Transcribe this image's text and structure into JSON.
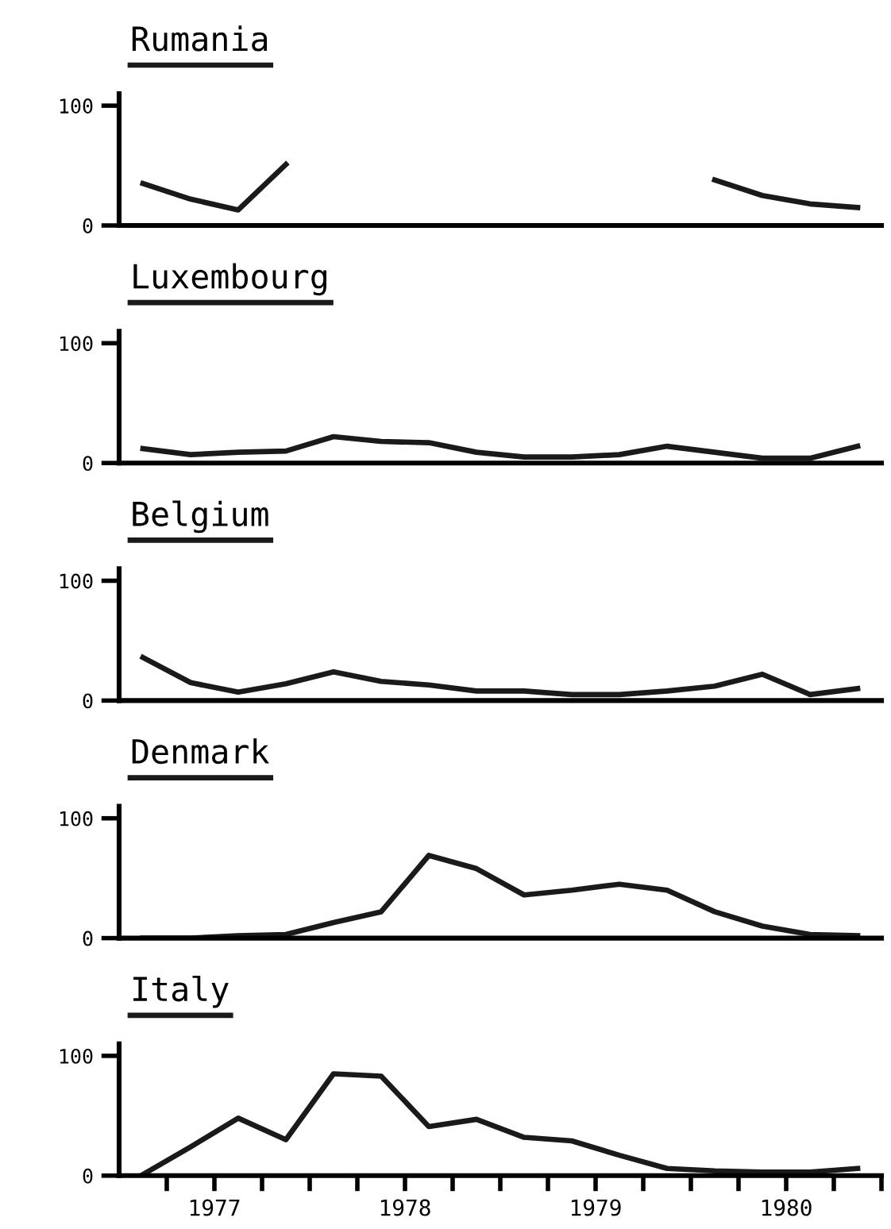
{
  "chart_data": [
    {
      "type": "line",
      "title": "Rumania",
      "x": [
        1977.125,
        1977.375,
        1977.625,
        1977.875,
        1978.125,
        1978.375,
        1978.625,
        1978.875,
        1979.125,
        1979.375,
        1979.625,
        1979.875,
        1980.125,
        1980.375,
        1980.625,
        1980.875
      ],
      "series": [
        {
          "color": "#1a1a1a",
          "values": [
            35,
            22,
            13,
            51,
            null,
            null,
            null,
            null,
            null,
            null,
            null,
            null,
            38,
            25,
            18,
            15
          ]
        }
      ],
      "xlim": [
        1977,
        1981
      ],
      "ylim": [
        0,
        110
      ],
      "yticks": [
        0,
        100
      ],
      "tick_labels": "y",
      "grid": false,
      "legend": false
    },
    {
      "type": "line",
      "title": "Luxembourg",
      "x": [
        1977.125,
        1977.375,
        1977.625,
        1977.875,
        1978.125,
        1978.375,
        1978.625,
        1978.875,
        1979.125,
        1979.375,
        1979.625,
        1979.875,
        1980.125,
        1980.375,
        1980.625,
        1980.875
      ],
      "series": [
        {
          "color": "#1a1a1a",
          "values": [
            12,
            7,
            9,
            10,
            22,
            18,
            17,
            9,
            5,
            5,
            7,
            14,
            9,
            4,
            4,
            14
          ]
        }
      ],
      "xlim": [
        1977,
        1981
      ],
      "ylim": [
        0,
        110
      ],
      "yticks": [
        0,
        100
      ],
      "tick_labels": "y",
      "grid": false,
      "legend": false
    },
    {
      "type": "line",
      "title": "Belgium",
      "x": [
        1977.125,
        1977.375,
        1977.625,
        1977.875,
        1978.125,
        1978.375,
        1978.625,
        1978.875,
        1979.125,
        1979.375,
        1979.625,
        1979.875,
        1980.125,
        1980.375,
        1980.625,
        1980.875
      ],
      "series": [
        {
          "color": "#1a1a1a",
          "values": [
            36,
            15,
            7,
            14,
            24,
            16,
            13,
            8,
            8,
            5,
            5,
            8,
            12,
            22,
            5,
            10
          ]
        }
      ],
      "xlim": [
        1977,
        1981
      ],
      "ylim": [
        0,
        110
      ],
      "yticks": [
        0,
        100
      ],
      "tick_labels": "y",
      "grid": false,
      "legend": false
    },
    {
      "type": "line",
      "title": "Denmark",
      "x": [
        1977.125,
        1977.375,
        1977.625,
        1977.875,
        1978.125,
        1978.375,
        1978.625,
        1978.875,
        1979.125,
        1979.375,
        1979.625,
        1979.875,
        1980.125,
        1980.375,
        1980.625,
        1980.875
      ],
      "series": [
        {
          "color": "#1a1a1a",
          "values": [
            0,
            0,
            2,
            3,
            13,
            22,
            69,
            58,
            36,
            40,
            45,
            40,
            22,
            10,
            3,
            2
          ]
        }
      ],
      "xlim": [
        1977,
        1981
      ],
      "ylim": [
        0,
        110
      ],
      "yticks": [
        0,
        100
      ],
      "tick_labels": "y",
      "grid": false,
      "legend": false
    },
    {
      "type": "line",
      "title": "Italy",
      "x": [
        1977.125,
        1977.375,
        1977.625,
        1977.875,
        1978.125,
        1978.375,
        1978.625,
        1978.875,
        1979.125,
        1979.375,
        1979.625,
        1979.875,
        1980.125,
        1980.375,
        1980.625,
        1980.875
      ],
      "series": [
        {
          "color": "#1a1a1a",
          "values": [
            1,
            24,
            48,
            30,
            85,
            83,
            41,
            47,
            32,
            29,
            17,
            6,
            4,
            3,
            3,
            6
          ]
        }
      ],
      "xlim": [
        1977,
        1981
      ],
      "ylim": [
        0,
        110
      ],
      "yticks": [
        0,
        100
      ],
      "xticks": [
        {
          "value": 1977.25,
          "label": null
        },
        {
          "value": 1977.5,
          "label": "1977"
        },
        {
          "value": 1977.75,
          "label": null
        },
        {
          "value": 1978,
          "label": null
        },
        {
          "value": 1978.25,
          "label": null
        },
        {
          "value": 1978.5,
          "label": "1978"
        },
        {
          "value": 1978.75,
          "label": null
        },
        {
          "value": 1979,
          "label": null
        },
        {
          "value": 1979.25,
          "label": null
        },
        {
          "value": 1979.5,
          "label": "1979"
        },
        {
          "value": 1979.75,
          "label": null
        },
        {
          "value": 1980,
          "label": null
        },
        {
          "value": 1980.25,
          "label": null
        },
        {
          "value": 1980.5,
          "label": "1980"
        },
        {
          "value": 1980.75,
          "label": null
        },
        {
          "value": 1981,
          "label": null
        }
      ],
      "grid": false,
      "legend": false
    }
  ]
}
